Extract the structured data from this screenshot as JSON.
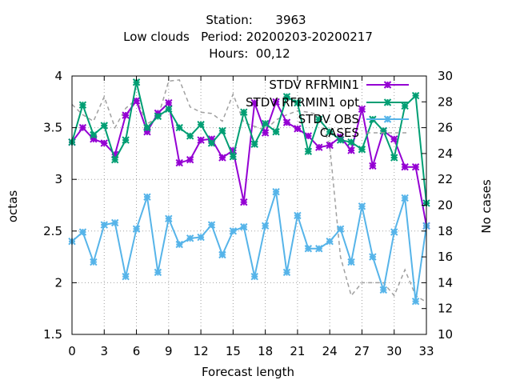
{
  "chart_data": {
    "type": "line",
    "title_lines": [
      "Station:      3963",
      "Low clouds   Period: 20200203-20200217",
      "Hours:  00,12"
    ],
    "xlabel": "Forecast length",
    "ylabel": "octas",
    "y2label": "No cases",
    "xlim": [
      0,
      33
    ],
    "ylim": [
      1.5,
      4
    ],
    "y2lim": [
      10,
      30
    ],
    "x_ticks": [
      0,
      3,
      6,
      9,
      12,
      15,
      18,
      21,
      24,
      27,
      30,
      33
    ],
    "y_ticks": [
      1.5,
      2,
      2.5,
      3,
      3.5,
      4
    ],
    "y_tick_labels": [
      "1.5",
      "2",
      "2.5",
      "3",
      "3.5",
      "4"
    ],
    "y2_ticks": [
      10,
      12,
      14,
      16,
      18,
      20,
      22,
      24,
      26,
      28,
      30
    ],
    "grid": true,
    "legend_position": "top-right",
    "x": [
      0,
      1,
      2,
      3,
      4,
      5,
      6,
      7,
      8,
      9,
      10,
      11,
      12,
      13,
      14,
      15,
      16,
      17,
      18,
      19,
      20,
      21,
      22,
      23,
      24,
      25,
      26,
      27,
      28,
      29,
      30,
      31,
      32,
      33
    ],
    "series": [
      {
        "name": "STDV RFRMIN1",
        "axis": "y",
        "color": "#9400d3",
        "values": [
          3.36,
          3.5,
          3.39,
          3.35,
          3.24,
          3.62,
          3.76,
          3.46,
          3.64,
          3.74,
          3.16,
          3.19,
          3.38,
          3.39,
          3.21,
          3.28,
          2.78,
          3.74,
          3.45,
          3.75,
          3.55,
          3.49,
          3.42,
          3.31,
          3.33,
          3.41,
          3.28,
          3.68,
          3.13,
          3.47,
          3.39,
          3.12,
          3.12,
          2.55
        ]
      },
      {
        "name": "STDV RFRMIN1___opt",
        "axis": "y",
        "color": "#009e73",
        "values": [
          3.36,
          3.72,
          3.43,
          3.52,
          3.19,
          3.38,
          3.94,
          3.5,
          3.61,
          3.68,
          3.5,
          3.42,
          3.53,
          3.35,
          3.47,
          3.22,
          3.65,
          3.34,
          3.54,
          3.46,
          3.8,
          3.74,
          3.27,
          3.58,
          3.46,
          3.38,
          3.36,
          3.29,
          3.58,
          3.47,
          3.21,
          3.71,
          3.81,
          2.77
        ]
      },
      {
        "name": "STDV OBS",
        "axis": "y",
        "color": "#56b4e9",
        "values": [
          2.4,
          2.49,
          2.2,
          2.56,
          2.58,
          2.06,
          2.52,
          2.83,
          2.1,
          2.62,
          2.37,
          2.43,
          2.44,
          2.56,
          2.27,
          2.5,
          2.54,
          2.06,
          2.55,
          2.88,
          2.1,
          2.65,
          2.33,
          2.33,
          2.4,
          2.52,
          2.2,
          2.74,
          2.25,
          1.93,
          2.49,
          2.82,
          1.82,
          2.55
        ]
      },
      {
        "name": "CASES",
        "axis": "y2",
        "color": "#a0a0a0",
        "dashed": true,
        "values": [
          27.8,
          27.0,
          26.5,
          28.4,
          26.0,
          27.5,
          28.2,
          26.3,
          26.8,
          29.6,
          29.7,
          27.6,
          27.2,
          27.1,
          26.5,
          28.6,
          26.4,
          26.1,
          25.8,
          26.6,
          27.0,
          27.3,
          27.2,
          27.0,
          24.6,
          16.0,
          13.0,
          14.0,
          14.0,
          14.0,
          13.0,
          15.0,
          13.0,
          12.5
        ]
      }
    ]
  }
}
